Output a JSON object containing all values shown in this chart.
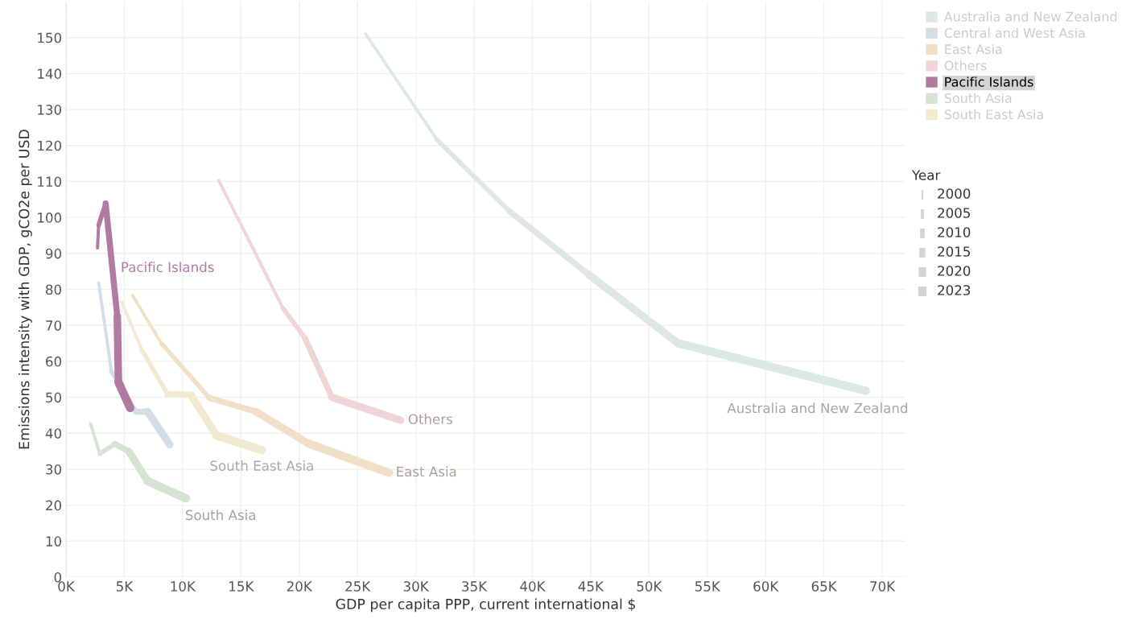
{
  "chart_data": {
    "type": "line",
    "xlabel": "GDP per capita PPP, current international $",
    "ylabel": "Emissions intensity with GDP, gCO2e per USD",
    "legend_title": "Year",
    "size_legend": [
      "2000",
      "2005",
      "2010",
      "2015",
      "2020",
      "2023"
    ],
    "series": [
      {
        "name": "Australia and New Zealand",
        "color": "#dde8e6",
        "x": [
          25700,
          31800,
          38000,
          44800,
          52500,
          68600
        ],
        "values": [
          151,
          121.7,
          101.8,
          84.2,
          65,
          51.8
        ]
      },
      {
        "name": "Central and West Asia",
        "color": "#d3dde5",
        "x": [
          2800,
          3900,
          6000,
          7000,
          8900
        ],
        "values": [
          81.8,
          57.2,
          46,
          46,
          36.8
        ]
      },
      {
        "name": "East Asia",
        "color": "#f2dfc8",
        "x": [
          5700,
          8200,
          12300,
          16300,
          20800,
          27700
        ],
        "values": [
          78.4,
          64.9,
          49.8,
          46,
          37.1,
          29
        ]
      },
      {
        "name": "Others",
        "color": "#f0d4d6",
        "x": [
          13100,
          18600,
          20500,
          22800,
          28700
        ],
        "values": [
          110.3,
          74.8,
          66.4,
          50,
          43.6
        ]
      },
      {
        "name": "Pacific Islands",
        "color": "#b07aa1",
        "x": [
          2700,
          2800,
          3400,
          4400,
          4500,
          5500
        ],
        "values": [
          91.5,
          97.9,
          103.9,
          72.5,
          54.2,
          47
        ]
      },
      {
        "name": "South Asia",
        "color": "#d5e3d3",
        "x": [
          2100,
          2900,
          4200,
          5400,
          7000,
          10300
        ],
        "values": [
          42.7,
          34.3,
          37,
          34.9,
          26.7,
          21.9
        ]
      },
      {
        "name": "South East Asia",
        "color": "#f1ead0",
        "x": [
          4800,
          6500,
          8700,
          10700,
          12900,
          16800
        ],
        "values": [
          76.3,
          63.2,
          50.9,
          50.7,
          39.4,
          35.3
        ]
      }
    ],
    "xlim": [
      0,
      72000
    ],
    "ylim": [
      0,
      160
    ],
    "xticks": [
      {
        "value": 0,
        "label": "0K"
      },
      {
        "value": 5000,
        "label": "5K"
      },
      {
        "value": 10000,
        "label": "10K"
      },
      {
        "value": 15000,
        "label": "15K"
      },
      {
        "value": 20000,
        "label": "20K"
      },
      {
        "value": 25000,
        "label": "25K"
      },
      {
        "value": 30000,
        "label": "30K"
      },
      {
        "value": 35000,
        "label": "35K"
      },
      {
        "value": 40000,
        "label": "40K"
      },
      {
        "value": 45000,
        "label": "45K"
      },
      {
        "value": 50000,
        "label": "50K"
      },
      {
        "value": 55000,
        "label": "55K"
      },
      {
        "value": 60000,
        "label": "60K"
      },
      {
        "value": 65000,
        "label": "65K"
      },
      {
        "value": 70000,
        "label": "70K"
      }
    ],
    "yticks": [
      0,
      10,
      20,
      30,
      40,
      50,
      60,
      70,
      80,
      90,
      100,
      110,
      120,
      130,
      140,
      150
    ],
    "grid": true,
    "legend": "top right"
  }
}
